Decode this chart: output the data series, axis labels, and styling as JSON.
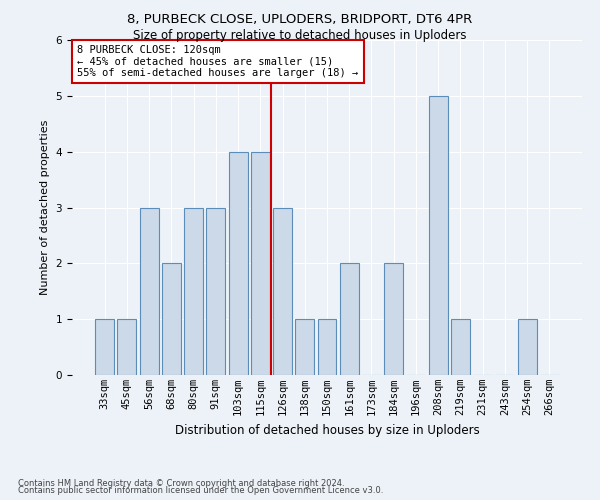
{
  "title1": "8, PURBECK CLOSE, UPLODERS, BRIDPORT, DT6 4PR",
  "title2": "Size of property relative to detached houses in Uploders",
  "xlabel": "Distribution of detached houses by size in Uploders",
  "ylabel": "Number of detached properties",
  "categories": [
    "33sqm",
    "45sqm",
    "56sqm",
    "68sqm",
    "80sqm",
    "91sqm",
    "103sqm",
    "115sqm",
    "126sqm",
    "138sqm",
    "150sqm",
    "161sqm",
    "173sqm",
    "184sqm",
    "196sqm",
    "208sqm",
    "219sqm",
    "231sqm",
    "243sqm",
    "254sqm",
    "266sqm"
  ],
  "values": [
    1,
    1,
    3,
    2,
    3,
    3,
    4,
    4,
    3,
    1,
    1,
    2,
    0,
    2,
    0,
    5,
    1,
    0,
    0,
    1,
    0
  ],
  "bar_color": "#ccd9e8",
  "bar_edge_color": "#5b8db8",
  "vline_x_index": 8,
  "vline_color": "#cc0000",
  "annotation_text": "8 PURBECK CLOSE: 120sqm\n← 45% of detached houses are smaller (15)\n55% of semi-detached houses are larger (18) →",
  "annotation_box_facecolor": "#ffffff",
  "annotation_box_edgecolor": "#cc0000",
  "ylim": [
    0,
    6
  ],
  "yticks": [
    0,
    1,
    2,
    3,
    4,
    5,
    6
  ],
  "footer1": "Contains HM Land Registry data © Crown copyright and database right 2024.",
  "footer2": "Contains public sector information licensed under the Open Government Licence v3.0.",
  "background_color": "#edf2f8",
  "title1_fontsize": 9.5,
  "title2_fontsize": 8.5,
  "xlabel_fontsize": 8.5,
  "ylabel_fontsize": 8,
  "tick_fontsize": 7.5,
  "ann_fontsize": 7.5,
  "footer_fontsize": 6
}
